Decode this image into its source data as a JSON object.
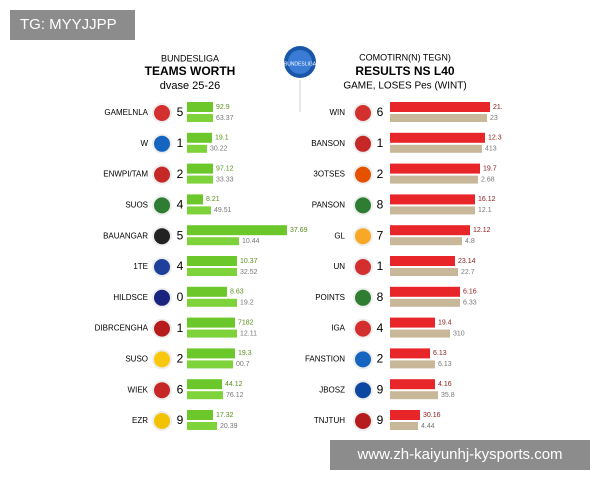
{
  "watermark": "TG: MYYJJPP",
  "footer_url": "www.zh-kaiyunhj-kysports.com",
  "logo_text": "BUNDESLIGA",
  "left": {
    "title_top": "BUNDESLIGA",
    "title": "TEAMS WORTH",
    "subtitle": "dvase 25-26",
    "rows": [
      {
        "name": "GAMELNLA",
        "rank": "5",
        "top": "92.9",
        "bottom": "63.37"
      },
      {
        "name": "W",
        "rank": "1",
        "top": "19.1",
        "bottom": "30.22"
      },
      {
        "name": "ENWPI/TAM",
        "rank": "2",
        "top": "97.12",
        "bottom": "33.33"
      },
      {
        "name": "SUOS",
        "rank": "4",
        "top": "8.21",
        "bottom": "49.51"
      },
      {
        "name": "BAUANGAR",
        "rank": "5",
        "top": "37.69",
        "bottom": "10.44"
      },
      {
        "name": "1TE",
        "rank": "4",
        "top": "10.37",
        "bottom": "32.52"
      },
      {
        "name": "HILDSCE",
        "rank": "0",
        "top": "8.63",
        "bottom": "19.2"
      },
      {
        "name": "DIBRCENGHA",
        "rank": "1",
        "top": "7182",
        "bottom": "12.11"
      },
      {
        "name": "SUSO",
        "rank": "2",
        "top": "19.3",
        "bottom": "00.7"
      },
      {
        "name": "WIEK",
        "rank": "6",
        "top": "44.12",
        "bottom": "76.12"
      },
      {
        "name": "EZR",
        "rank": "9",
        "top": "17.32",
        "bottom": "20.39"
      }
    ]
  },
  "right": {
    "title_top": "COMOTIRN(N) TEGN)",
    "title": "RESULTS NS L40",
    "subtitle": "GAME, LOSES Pes (WINT)",
    "rows": [
      {
        "name": "WIN",
        "rank": "6",
        "top": "21.",
        "bottom": "23"
      },
      {
        "name": "BANSON",
        "rank": "1",
        "top": "12.3",
        "bottom": "413"
      },
      {
        "name": "3OTSES",
        "rank": "2",
        "top": "19.7",
        "bottom": "2.68"
      },
      {
        "name": "PANSON",
        "rank": "8",
        "top": "16.12",
        "bottom": "12.1"
      },
      {
        "name": "GL",
        "rank": "7",
        "top": "12.12",
        "bottom": "4.8"
      },
      {
        "name": "UN",
        "rank": "1",
        "top": "23.14",
        "bottom": "22.7"
      },
      {
        "name": "POINTS",
        "rank": "8",
        "top": "6.16",
        "bottom": "6.33"
      },
      {
        "name": "IGA",
        "rank": "4",
        "top": "19.4",
        "bottom": "310"
      },
      {
        "name": "FANSTION",
        "rank": "2",
        "top": "6.13",
        "bottom": "6.13"
      },
      {
        "name": "JBOSZ",
        "rank": "9",
        "top": "4.16",
        "bottom": "35.8"
      },
      {
        "name": "TNJTUH",
        "rank": "9",
        "top": "30.16",
        "bottom": "4.44"
      }
    ]
  }
}
